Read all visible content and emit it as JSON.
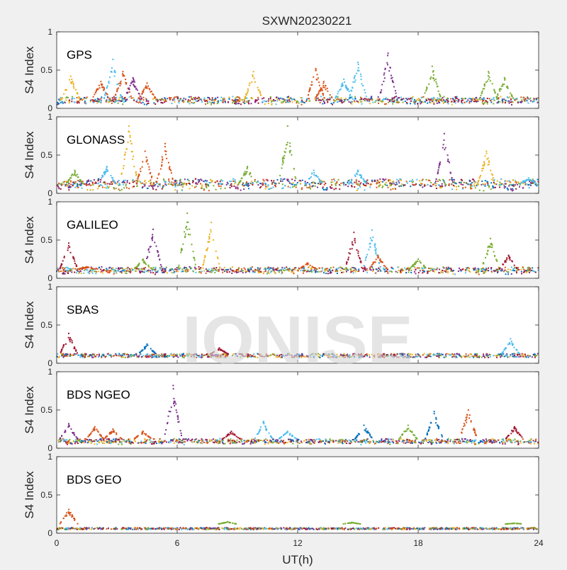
{
  "figure": {
    "title": "SXWN20230221",
    "xlabel": "UT(h)",
    "ylabel": "S4 Index",
    "watermark": "IONISE",
    "xticks": [
      "0",
      "6",
      "12",
      "18",
      "24"
    ],
    "yticks": [
      "0",
      "0.5",
      "1"
    ]
  },
  "colors": {
    "series": [
      "#0072BD",
      "#D95319",
      "#EDB120",
      "#7E2F8E",
      "#77AC30",
      "#4DBEEE",
      "#A2142F"
    ],
    "axes_bg": "#ffffff",
    "figure_bg": "#f0f0f0"
  },
  "chart_data": [
    {
      "type": "scatter",
      "panel": "GPS",
      "title": "GPS",
      "xlabel": "UT(h)",
      "ylabel": "S4 Index",
      "xlim": [
        0,
        24
      ],
      "ylim": [
        0,
        1
      ],
      "baseline": [
        0.08,
        0.12
      ],
      "noise": 0.035,
      "peaks": [
        {
          "x": 0.7,
          "y": 0.42,
          "series": 2
        },
        {
          "x": 2.2,
          "y": 0.35,
          "series": 1
        },
        {
          "x": 2.8,
          "y": 0.64,
          "series": 5
        },
        {
          "x": 3.3,
          "y": 0.48,
          "series": 1
        },
        {
          "x": 3.8,
          "y": 0.4,
          "series": 3
        },
        {
          "x": 4.5,
          "y": 0.33,
          "series": 1
        },
        {
          "x": 9.8,
          "y": 0.48,
          "series": 2
        },
        {
          "x": 12.9,
          "y": 0.52,
          "series": 1
        },
        {
          "x": 13.3,
          "y": 0.35,
          "series": 1
        },
        {
          "x": 14.3,
          "y": 0.38,
          "series": 5
        },
        {
          "x": 15.0,
          "y": 0.6,
          "series": 5
        },
        {
          "x": 16.5,
          "y": 0.72,
          "series": 3
        },
        {
          "x": 18.7,
          "y": 0.55,
          "series": 4
        },
        {
          "x": 21.5,
          "y": 0.48,
          "series": 4
        },
        {
          "x": 22.3,
          "y": 0.4,
          "series": 4
        }
      ]
    },
    {
      "type": "scatter",
      "panel": "GLONASS",
      "title": "GLONASS",
      "xlabel": "UT(h)",
      "ylabel": "S4 Index",
      "xlim": [
        0,
        24
      ],
      "ylim": [
        0,
        1
      ],
      "baseline": [
        0.07,
        0.15
      ],
      "noise": 0.04,
      "peaks": [
        {
          "x": 0.9,
          "y": 0.3,
          "series": 4
        },
        {
          "x": 2.5,
          "y": 0.35,
          "series": 5
        },
        {
          "x": 3.6,
          "y": 0.88,
          "series": 2
        },
        {
          "x": 4.4,
          "y": 0.55,
          "series": 1
        },
        {
          "x": 5.4,
          "y": 0.65,
          "series": 1
        },
        {
          "x": 9.5,
          "y": 0.35,
          "series": 4
        },
        {
          "x": 11.5,
          "y": 0.88,
          "series": 4
        },
        {
          "x": 12.8,
          "y": 0.3,
          "series": 5
        },
        {
          "x": 15.0,
          "y": 0.3,
          "series": 5
        },
        {
          "x": 19.3,
          "y": 0.78,
          "series": 3
        },
        {
          "x": 21.4,
          "y": 0.55,
          "series": 2
        },
        {
          "x": 23.5,
          "y": 0.2,
          "series": 5
        }
      ]
    },
    {
      "type": "scatter",
      "panel": "GALILEO",
      "title": "GALILEO",
      "xlabel": "UT(h)",
      "ylabel": "S4 Index",
      "xlim": [
        0,
        24
      ],
      "ylim": [
        0,
        1
      ],
      "baseline": [
        0.08,
        0.12
      ],
      "noise": 0.03,
      "peaks": [
        {
          "x": 0.6,
          "y": 0.46,
          "series": 6
        },
        {
          "x": 1.5,
          "y": 0.15,
          "series": 1
        },
        {
          "x": 4.3,
          "y": 0.25,
          "series": 4
        },
        {
          "x": 4.8,
          "y": 0.64,
          "series": 3
        },
        {
          "x": 6.5,
          "y": 0.85,
          "series": 4
        },
        {
          "x": 7.7,
          "y": 0.73,
          "series": 2
        },
        {
          "x": 12.5,
          "y": 0.2,
          "series": 1
        },
        {
          "x": 14.8,
          "y": 0.6,
          "series": 6
        },
        {
          "x": 15.7,
          "y": 0.63,
          "series": 5
        },
        {
          "x": 16.0,
          "y": 0.3,
          "series": 1
        },
        {
          "x": 18.0,
          "y": 0.25,
          "series": 4
        },
        {
          "x": 21.6,
          "y": 0.52,
          "series": 4
        },
        {
          "x": 22.5,
          "y": 0.3,
          "series": 6
        }
      ]
    },
    {
      "type": "scatter",
      "panel": "SBAS",
      "title": "SBAS",
      "xlabel": "UT(h)",
      "ylabel": "S4 Index",
      "xlim": [
        0,
        24
      ],
      "ylim": [
        0,
        1
      ],
      "baseline": [
        0.1,
        0.1
      ],
      "noise": 0.025,
      "peaks": [
        {
          "x": 0.6,
          "y": 0.39,
          "series": 6
        },
        {
          "x": 4.5,
          "y": 0.25,
          "series": 0
        },
        {
          "x": 8.1,
          "y": 0.2,
          "series": 6
        },
        {
          "x": 22.6,
          "y": 0.32,
          "series": 5
        }
      ]
    },
    {
      "type": "scatter",
      "panel": "BDS NGEO",
      "title": "BDS NGEO",
      "xlabel": "UT(h)",
      "ylabel": "S4 Index",
      "xlim": [
        0,
        24
      ],
      "ylim": [
        0,
        1
      ],
      "baseline": [
        0.07,
        0.1
      ],
      "noise": 0.025,
      "peaks": [
        {
          "x": 0.6,
          "y": 0.32,
          "series": 3
        },
        {
          "x": 1.9,
          "y": 0.28,
          "series": 1
        },
        {
          "x": 2.8,
          "y": 0.25,
          "series": 1
        },
        {
          "x": 4.3,
          "y": 0.22,
          "series": 1
        },
        {
          "x": 5.8,
          "y": 0.82,
          "series": 3
        },
        {
          "x": 8.7,
          "y": 0.22,
          "series": 6
        },
        {
          "x": 10.3,
          "y": 0.35,
          "series": 5
        },
        {
          "x": 11.5,
          "y": 0.22,
          "series": 5
        },
        {
          "x": 15.3,
          "y": 0.3,
          "series": 0
        },
        {
          "x": 17.5,
          "y": 0.3,
          "series": 4
        },
        {
          "x": 18.8,
          "y": 0.48,
          "series": 0
        },
        {
          "x": 20.5,
          "y": 0.5,
          "series": 1
        },
        {
          "x": 22.8,
          "y": 0.28,
          "series": 6
        }
      ]
    },
    {
      "type": "scatter",
      "panel": "BDS GEO",
      "title": "BDS GEO",
      "xlabel": "UT(h)",
      "ylabel": "S4 Index",
      "xlim": [
        0,
        24
      ],
      "ylim": [
        0,
        1
      ],
      "baseline": [
        0.06,
        0.06
      ],
      "noise": 0.012,
      "peaks": [
        {
          "x": 0.6,
          "y": 0.31,
          "series": 1
        },
        {
          "x": 8.5,
          "y": 0.15,
          "series": 4
        },
        {
          "x": 14.7,
          "y": 0.14,
          "series": 4
        },
        {
          "x": 22.8,
          "y": 0.13,
          "series": 4
        }
      ]
    }
  ]
}
